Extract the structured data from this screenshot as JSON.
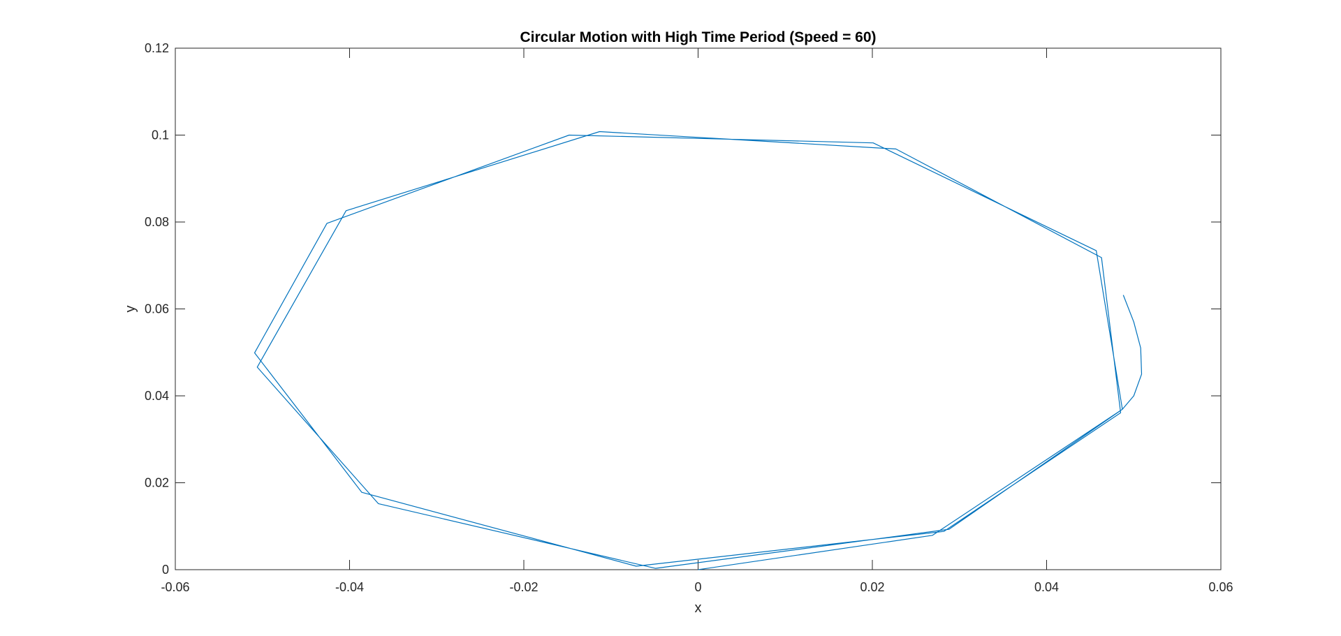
{
  "chart_data": {
    "type": "line",
    "title": "Circular Motion with High Time Period (Speed = 60)",
    "xlabel": "x",
    "ylabel": "y",
    "xlim": [
      -0.06,
      0.06
    ],
    "ylim": [
      0,
      0.12
    ],
    "xticks": [
      -0.06,
      -0.04,
      -0.02,
      0,
      0.02,
      0.04,
      0.06
    ],
    "xtick_labels": [
      "-0.06",
      "-0.04",
      "-0.02",
      "0",
      "0.02",
      "0.04",
      "0.06"
    ],
    "yticks": [
      0,
      0.02,
      0.04,
      0.06,
      0.08,
      0.1,
      0.12
    ],
    "ytick_labels": [
      "0",
      "0.02",
      "0.04",
      "0.06",
      "0.08",
      "0.1",
      "0.12"
    ],
    "grid": false,
    "series_color": "#0072BD",
    "series": [
      {
        "x": [
          0.0,
          0.0269,
          0.0487,
          0.0457,
          0.0201,
          -0.0148,
          -0.0426,
          -0.0509,
          -0.0386,
          -0.0071,
          0.0282,
          0.0485,
          0.0463,
          0.0227,
          -0.0113,
          -0.0404,
          -0.0506,
          -0.0367,
          -0.0049,
          0.0288,
          0.0487,
          0.05,
          0.0509,
          0.0508,
          0.05,
          0.0488
        ],
        "y": [
          0.0,
          0.0079,
          0.0369,
          0.0734,
          0.0982,
          0.1,
          0.0797,
          0.0499,
          0.0178,
          0.0008,
          0.0088,
          0.0361,
          0.0718,
          0.0968,
          0.1008,
          0.0826,
          0.0466,
          0.0152,
          0.0003,
          0.0093,
          0.0369,
          0.04,
          0.045,
          0.051,
          0.057,
          0.0632
        ]
      }
    ]
  }
}
